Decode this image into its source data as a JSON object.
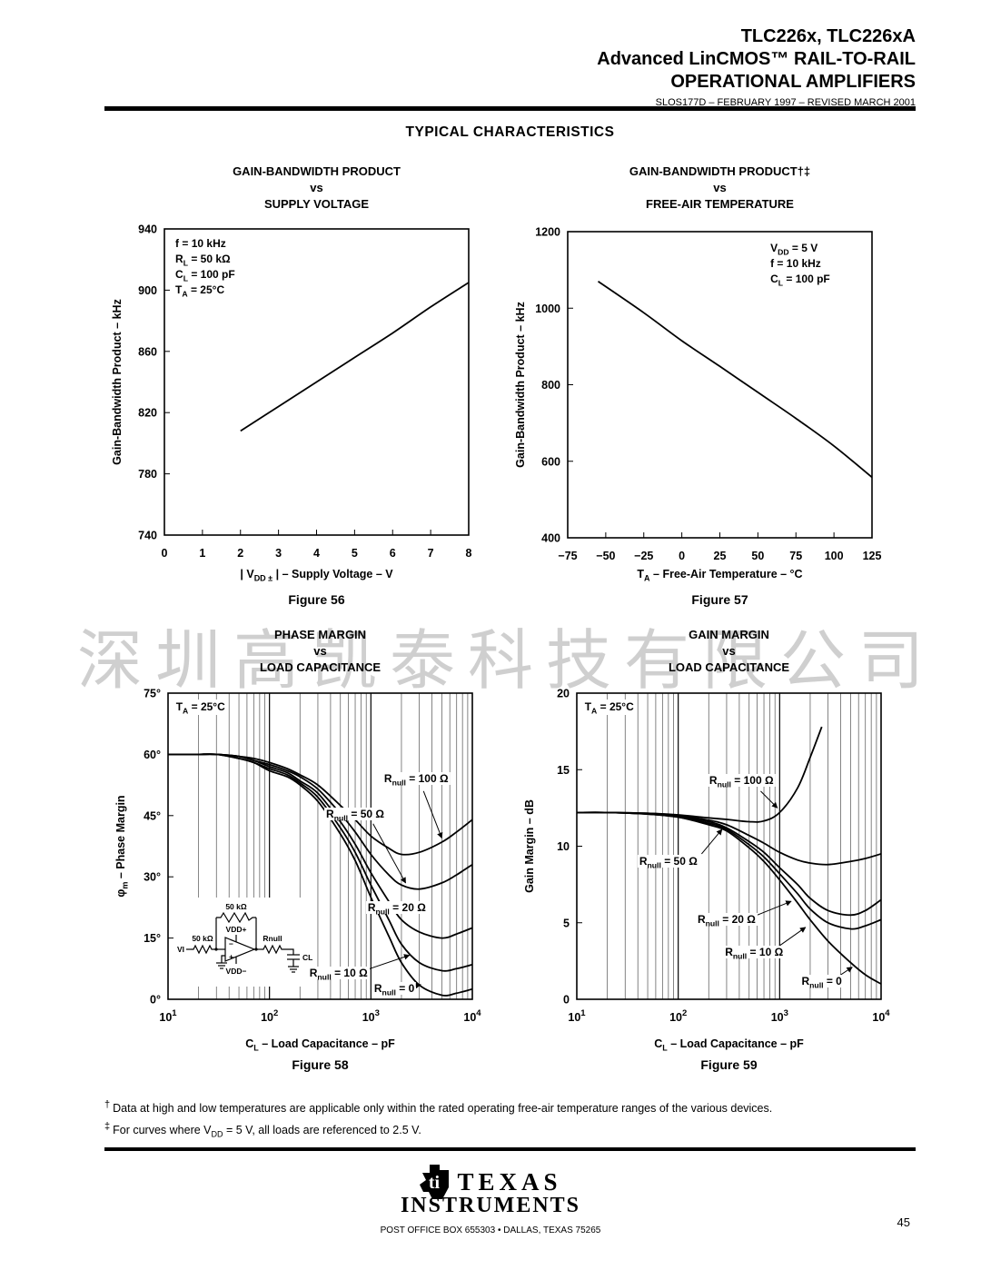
{
  "header": {
    "line1": "TLC226x, TLC226xA",
    "line2": "Advanced LinCMOS™ RAIL-TO-RAIL",
    "line3": "OPERATIONAL AMPLIFIERS",
    "doc_code": "SLOS177D – FEBRUARY 1997 – REVISED  MARCH 2001"
  },
  "page_title": "TYPICAL CHARACTERISTICS",
  "watermark": "深圳高凯泰科技有限公司",
  "chart_data": [
    {
      "id": "figure-56",
      "type": "line",
      "title_lines": [
        "GAIN-BANDWIDTH PRODUCT",
        "vs",
        "SUPPLY VOLTAGE"
      ],
      "caption": "Figure 56",
      "xlabel": "| V{DD ±} | – Supply Voltage – V",
      "ylabel": "Gain-Bandwidth Product – kHz",
      "xscale": "linear",
      "xlim": [
        0,
        8
      ],
      "xticks": [
        0,
        1,
        2,
        3,
        4,
        5,
        6,
        7,
        8
      ],
      "ylim": [
        740,
        940
      ],
      "yticks": [
        740,
        780,
        820,
        860,
        900,
        940
      ],
      "ytick_suffix": "",
      "annotations": {
        "fx": 0.03,
        "fy": 0.025,
        "lines": [
          "f = 10 kHz",
          "R{L} = 50 kΩ",
          "C{L} = 100 pF",
          "T{A} = 25°C"
        ]
      },
      "series": [
        {
          "name": "Gain-Bandwidth Product",
          "x": [
            2,
            3,
            4,
            5,
            6,
            7,
            8
          ],
          "y": [
            808,
            824,
            840,
            856,
            872,
            889,
            905
          ]
        }
      ],
      "curve_labels": []
    },
    {
      "id": "figure-57",
      "type": "line",
      "title_lines": [
        "GAIN-BANDWIDTH PRODUCT†‡",
        "vs",
        "FREE-AIR TEMPERATURE"
      ],
      "caption": "Figure 57",
      "xlabel": "T{A} – Free-Air Temperature – °C",
      "ylabel": "Gain-Bandwidth Product – kHz",
      "xscale": "linear",
      "xlim": [
        -75,
        125
      ],
      "xticks": [
        -75,
        -50,
        -25,
        0,
        25,
        50,
        75,
        100,
        125
      ],
      "ylim": [
        400,
        1200
      ],
      "yticks": [
        400,
        600,
        800,
        1000,
        1200
      ],
      "ytick_suffix": "",
      "annotations": {
        "fx": 0.66,
        "fy": 0.03,
        "lines": [
          "V{DD} = 5 V",
          "f = 10 kHz",
          "C{L} = 100 pF"
        ]
      },
      "series": [
        {
          "name": "Gain-Bandwidth Product",
          "x": [
            -55,
            -25,
            0,
            25,
            50,
            75,
            100,
            125
          ],
          "y": [
            1070,
            988,
            915,
            848,
            780,
            712,
            640,
            558
          ]
        }
      ],
      "curve_labels": []
    },
    {
      "id": "figure-58",
      "type": "line",
      "title_lines": [
        "PHASE MARGIN",
        "vs",
        "LOAD CAPACITANCE"
      ],
      "caption": "Figure 58",
      "xlabel": "C{L} – Load Capacitance – pF",
      "ylabel": "φ{m} – Phase Margin",
      "xscale": "log",
      "xlim": [
        10,
        10000
      ],
      "ylim": [
        0,
        75
      ],
      "yticks": [
        0,
        15,
        30,
        45,
        60,
        75
      ],
      "ytick_suffix": "°",
      "annotations": {
        "fx": 0.02,
        "fy": 0.02,
        "lines": [
          "T{A} = 25°C"
        ]
      },
      "series": [
        {
          "name": "Rnull = 100 Ω",
          "x": [
            10,
            15,
            20,
            30,
            50,
            70,
            100,
            150,
            200,
            300,
            500,
            700,
            1000,
            1500,
            2000,
            3000,
            5000,
            7000,
            10000
          ],
          "y": [
            60,
            60,
            60,
            60,
            59.5,
            59,
            58,
            56.5,
            55,
            52.5,
            47.5,
            44,
            40,
            37,
            35.5,
            36,
            38.5,
            41,
            44
          ]
        },
        {
          "name": "Rnull = 50 Ω",
          "x": [
            10,
            15,
            20,
            30,
            50,
            70,
            100,
            150,
            200,
            300,
            500,
            700,
            1000,
            1500,
            2000,
            3000,
            5000,
            7000,
            10000
          ],
          "y": [
            60,
            60,
            60,
            60,
            59.5,
            58.5,
            57.5,
            56,
            54.5,
            51.5,
            45.5,
            41,
            35.5,
            30.5,
            28,
            27,
            28.5,
            30.5,
            33
          ]
        },
        {
          "name": "Rnull = 20 Ω",
          "x": [
            10,
            15,
            20,
            30,
            50,
            70,
            100,
            150,
            200,
            300,
            500,
            700,
            1000,
            1500,
            2000,
            3000,
            5000,
            7000,
            10000
          ],
          "y": [
            60,
            60,
            60,
            60,
            59.5,
            58.5,
            57,
            55.5,
            53.5,
            50.5,
            43.5,
            38,
            31,
            24,
            19.5,
            16.5,
            15,
            16,
            17.5
          ]
        },
        {
          "name": "Rnull = 10 Ω",
          "x": [
            10,
            15,
            20,
            30,
            50,
            70,
            100,
            150,
            200,
            300,
            500,
            700,
            1000,
            1500,
            2000,
            3000,
            5000,
            7000,
            10000
          ],
          "y": [
            60,
            60,
            60,
            60,
            59,
            58,
            56.5,
            55,
            53,
            49.5,
            42,
            36,
            28,
            19.5,
            13.5,
            9,
            7,
            7.5,
            8.5
          ]
        },
        {
          "name": "Rnull = 0",
          "x": [
            10,
            15,
            20,
            30,
            50,
            70,
            100,
            150,
            200,
            300,
            500,
            700,
            1000,
            1500,
            2000,
            3000,
            5000,
            7000,
            10000
          ],
          "y": [
            60,
            60,
            60,
            60,
            59,
            58,
            56,
            54.5,
            52.5,
            48.5,
            40.5,
            34,
            25,
            15.5,
            9,
            3.5,
            1,
            1.5,
            2.5
          ]
        }
      ],
      "curve_labels": [
        {
          "text": "R{null} = 100 Ω",
          "x": 2800,
          "y": 54,
          "leader": [
            [
              3300,
              51
            ],
            [
              5000,
              39.5
            ]
          ]
        },
        {
          "text": "R{null} = 50 Ω",
          "x": 700,
          "y": 45.5,
          "leader": [
            [
              1050,
              43
            ],
            [
              2200,
              28.5
            ]
          ]
        },
        {
          "text": "R{null} = 20 Ω",
          "x": 1800,
          "y": 22.5
        },
        {
          "text": "R{null} = 10 Ω",
          "x": 480,
          "y": 6.5,
          "leader": [
            [
              850,
              7
            ],
            [
              2400,
              10.8
            ]
          ]
        },
        {
          "text": "R{null} = 0",
          "x": 1700,
          "y": 2.6,
          "leader": [
            [
              2400,
              3
            ],
            [
              3100,
              3.6
            ]
          ]
        }
      ],
      "inset": {
        "vi": "VI",
        "r_in": "50 kΩ",
        "r_f": "50 kΩ",
        "vdd_plus": "VDD+",
        "vdd_minus": "VDD−",
        "r_null": "Rnull",
        "c_l": "CL"
      }
    },
    {
      "id": "figure-59",
      "type": "line",
      "title_lines": [
        "GAIN MARGIN",
        "vs",
        "LOAD CAPACITANCE"
      ],
      "caption": "Figure 59",
      "xlabel": "C{L} – Load Capacitance – pF",
      "ylabel": "Gain Margin – dB",
      "xscale": "log",
      "xlim": [
        10,
        10000
      ],
      "ylim": [
        0,
        20
      ],
      "yticks": [
        0,
        5,
        10,
        15,
        20
      ],
      "ytick_suffix": "",
      "annotations": {
        "fx": 0.02,
        "fy": 0.02,
        "lines": [
          "T{A} = 25°C"
        ]
      },
      "series": [
        {
          "name": "Rnull = 100 Ω",
          "x": [
            10,
            20,
            50,
            100,
            200,
            300,
            500,
            700,
            1000,
            1500,
            2000,
            2600
          ],
          "y": [
            12.2,
            12.2,
            12.15,
            12.05,
            11.85,
            11.75,
            11.6,
            11.65,
            12.2,
            13.8,
            15.8,
            17.8
          ]
        },
        {
          "name": "Rnull = 50 Ω",
          "x": [
            10,
            20,
            50,
            100,
            200,
            300,
            500,
            700,
            1000,
            1500,
            2000,
            3000,
            5000,
            7000,
            10000
          ],
          "y": [
            12.2,
            12.2,
            12.15,
            12,
            11.7,
            11.4,
            10.7,
            10.2,
            9.6,
            9.1,
            8.9,
            8.8,
            9,
            9.2,
            9.5
          ]
        },
        {
          "name": "Rnull = 20 Ω",
          "x": [
            10,
            20,
            50,
            100,
            200,
            300,
            500,
            700,
            1000,
            1500,
            2000,
            3000,
            5000,
            7000,
            10000
          ],
          "y": [
            12.2,
            12.2,
            12.1,
            11.95,
            11.6,
            11.2,
            10.3,
            9.6,
            8.6,
            7.5,
            6.6,
            5.8,
            5.5,
            5.8,
            6.5
          ]
        },
        {
          "name": "Rnull = 10 Ω",
          "x": [
            10,
            20,
            50,
            100,
            200,
            300,
            500,
            700,
            1000,
            1500,
            2000,
            3000,
            5000,
            7000,
            10000
          ],
          "y": [
            12.2,
            12.2,
            12.1,
            11.9,
            11.5,
            11.1,
            10.1,
            9.3,
            8.2,
            6.9,
            5.9,
            5,
            4.6,
            4.8,
            5.2
          ]
        },
        {
          "name": "Rnull = 0",
          "x": [
            10,
            20,
            50,
            100,
            200,
            300,
            500,
            700,
            1000,
            1500,
            2000,
            3000,
            5000,
            7000,
            10000
          ],
          "y": [
            12.2,
            12.2,
            12.1,
            11.9,
            11.4,
            11,
            9.9,
            9,
            7.8,
            6.3,
            5.2,
            3.8,
            2.4,
            1.6,
            1
          ]
        }
      ],
      "curve_labels": [
        {
          "text": "R{null} = 100 Ω",
          "x": 420,
          "y": 14.3,
          "leader": [
            [
              650,
              13.6
            ],
            [
              950,
              12.5
            ]
          ]
        },
        {
          "text": "R{null} = 50 Ω",
          "x": 80,
          "y": 9,
          "leader": [
            [
              170,
              9.5
            ],
            [
              270,
              11.1
            ]
          ]
        },
        {
          "text": "R{null} = 20 Ω",
          "x": 300,
          "y": 5.2,
          "leader": [
            [
              600,
              5.5
            ],
            [
              1300,
              6.4
            ]
          ]
        },
        {
          "text": "R{null} = 10 Ω",
          "x": 560,
          "y": 3.1,
          "leader": [
            [
              950,
              3.4
            ],
            [
              1800,
              4.7
            ]
          ]
        },
        {
          "text": "R{null} = 0",
          "x": 2600,
          "y": 1.2,
          "leader": [
            [
              3800,
              1.5
            ],
            [
              5200,
              2.1
            ]
          ]
        }
      ]
    }
  ],
  "footnotes": [
    {
      "symbol": "†",
      "text": "Data at high and low temperatures are applicable only within the rated operating free-air temperature ranges of the various devices."
    },
    {
      "symbol": "‡",
      "text": "For curves where V{DD} = 5 V, all loads are referenced to 2.5 V."
    }
  ],
  "footer": {
    "emblem": "ti",
    "brand_top": "TEXAS",
    "brand_bottom": "INSTRUMENTS",
    "address": "POST OFFICE BOX 655303 • DALLAS, TEXAS 75265",
    "page_number": "45"
  }
}
